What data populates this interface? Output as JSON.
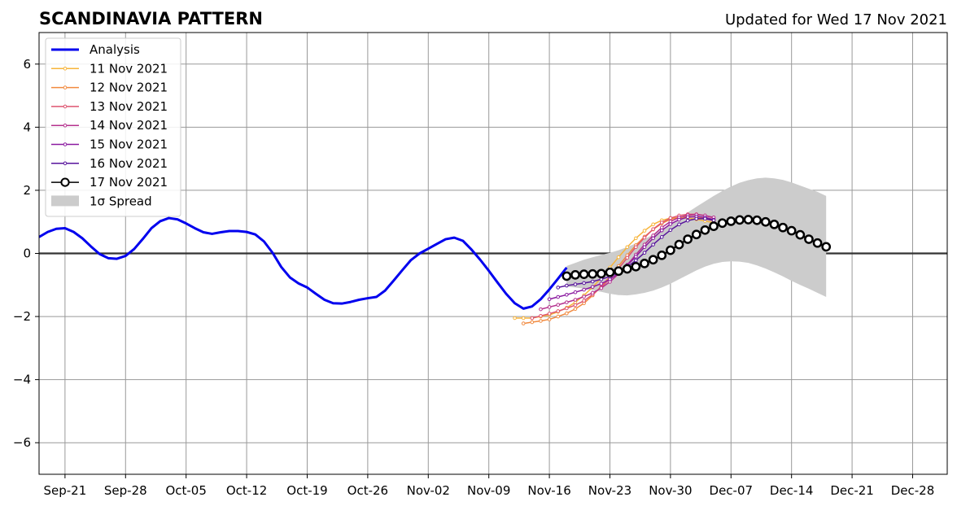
{
  "chart_data": {
    "type": "line",
    "title": "SCANDINAVIA PATTERN",
    "subtitle": "Updated for Wed 17 Nov 2021",
    "xlabel": "",
    "ylabel": "",
    "x_ticks": [
      "Sep-21",
      "Sep-28",
      "Oct-05",
      "Oct-12",
      "Oct-19",
      "Oct-26",
      "Nov-02",
      "Nov-09",
      "Nov-16",
      "Nov-23",
      "Nov-30",
      "Dec-07",
      "Dec-14",
      "Dec-21",
      "Dec-28"
    ],
    "y_ticks": [
      "6",
      "4",
      "2",
      "0",
      "−2",
      "−4",
      "−6"
    ],
    "xlim": [
      "2021-09-18",
      "2022-01-01"
    ],
    "ylim": [
      -7,
      7
    ],
    "grid": true,
    "legend_position": "top-left",
    "analysis": {
      "name": "Analysis",
      "color": "#0000ee",
      "start_date": "2021-09-18",
      "values": [
        0.52,
        0.68,
        0.78,
        0.8,
        0.68,
        0.48,
        0.22,
        -0.02,
        -0.15,
        -0.17,
        -0.08,
        0.14,
        0.46,
        0.8,
        1.02,
        1.12,
        1.08,
        0.95,
        0.8,
        0.67,
        0.62,
        0.67,
        0.71,
        0.71,
        0.68,
        0.6,
        0.38,
        0.02,
        -0.43,
        -0.76,
        -0.95,
        -1.08,
        -1.28,
        -1.47,
        -1.58,
        -1.59,
        -1.54,
        -1.47,
        -1.42,
        -1.38,
        -1.18,
        -0.86,
        -0.53,
        -0.21,
        0.0,
        0.15,
        0.3,
        0.45,
        0.5,
        0.4,
        0.12,
        -0.2,
        -0.55,
        -0.92,
        -1.28,
        -1.58,
        -1.75,
        -1.68,
        -1.45,
        -1.14,
        -0.8,
        -0.45
      ]
    },
    "forecasts": [
      {
        "name": "11 Nov 2021",
        "color": "#f7b43a",
        "start_date": "2021-11-12",
        "values": [
          -2.05,
          -2.05,
          -2.05,
          -2.0,
          -1.95,
          -1.85,
          -1.72,
          -1.55,
          -1.33,
          -1.07,
          -0.78,
          -0.45,
          -0.12,
          0.2,
          0.48,
          0.72,
          0.92,
          1.05,
          1.12,
          1.13,
          1.12,
          1.08,
          1.03,
          0.97
        ]
      },
      {
        "name": "12 Nov 2021",
        "color": "#f18a3f",
        "start_date": "2021-11-13",
        "values": [
          -2.22,
          -2.18,
          -2.14,
          -2.09,
          -2.0,
          -1.9,
          -1.76,
          -1.58,
          -1.33,
          -1.04,
          -0.73,
          -0.4,
          -0.06,
          0.26,
          0.53,
          0.76,
          0.95,
          1.08,
          1.15,
          1.17,
          1.15,
          1.1,
          1.03
        ]
      },
      {
        "name": "13 Nov 2021",
        "color": "#de5470",
        "start_date": "2021-11-14",
        "values": [
          -2.05,
          -1.98,
          -1.91,
          -1.83,
          -1.74,
          -1.64,
          -1.5,
          -1.3,
          -1.07,
          -0.8,
          -0.48,
          -0.14,
          0.2,
          0.5,
          0.77,
          0.98,
          1.12,
          1.2,
          1.24,
          1.24,
          1.2,
          1.12
        ]
      },
      {
        "name": "14 Nov 2021",
        "color": "#b5318e",
        "start_date": "2021-11-15",
        "values": [
          -1.77,
          -1.7,
          -1.63,
          -1.55,
          -1.47,
          -1.37,
          -1.25,
          -1.1,
          -0.9,
          -0.65,
          -0.36,
          -0.04,
          0.28,
          0.57,
          0.82,
          1.01,
          1.14,
          1.21,
          1.23,
          1.2,
          1.14
        ]
      },
      {
        "name": "15 Nov 2021",
        "color": "#8b1aa0",
        "start_date": "2021-11-16",
        "values": [
          -1.45,
          -1.38,
          -1.31,
          -1.23,
          -1.15,
          -1.06,
          -0.96,
          -0.82,
          -0.62,
          -0.38,
          -0.1,
          0.2,
          0.48,
          0.73,
          0.93,
          1.07,
          1.15,
          1.17,
          1.14,
          1.07
        ]
      },
      {
        "name": "16 Nov 2021",
        "color": "#57139c",
        "start_date": "2021-11-17",
        "values": [
          -1.08,
          -1.02,
          -0.98,
          -0.94,
          -0.89,
          -0.82,
          -0.73,
          -0.6,
          -0.43,
          -0.22,
          0.02,
          0.28,
          0.52,
          0.74,
          0.92,
          1.04,
          1.1,
          1.1,
          1.05
        ]
      }
    ],
    "current_forecast": {
      "name": "17 Nov 2021",
      "color": "#000000",
      "start_date": "2021-11-18",
      "values": [
        -0.72,
        -0.68,
        -0.66,
        -0.65,
        -0.64,
        -0.6,
        -0.56,
        -0.49,
        -0.42,
        -0.32,
        -0.2,
        -0.06,
        0.1,
        0.28,
        0.45,
        0.6,
        0.74,
        0.86,
        0.96,
        1.02,
        1.06,
        1.07,
        1.05,
        1.0,
        0.92,
        0.82,
        0.72,
        0.59,
        0.45,
        0.33,
        0.21
      ]
    },
    "spread": {
      "name": "1σ Spread",
      "color": "#cccccc",
      "start_date": "2021-11-18",
      "upper": [
        -0.4,
        -0.3,
        -0.2,
        -0.12,
        -0.05,
        0.02,
        0.1,
        0.2,
        0.32,
        0.45,
        0.6,
        0.76,
        0.92,
        1.1,
        1.3,
        1.48,
        1.65,
        1.82,
        1.98,
        2.12,
        2.24,
        2.32,
        2.38,
        2.4,
        2.38,
        2.33,
        2.25,
        2.15,
        2.05,
        1.95,
        1.82
      ],
      "lower": [
        -1.05,
        -1.08,
        -1.12,
        -1.17,
        -1.22,
        -1.28,
        -1.32,
        -1.33,
        -1.3,
        -1.25,
        -1.18,
        -1.08,
        -0.96,
        -0.82,
        -0.68,
        -0.54,
        -0.42,
        -0.33,
        -0.27,
        -0.25,
        -0.26,
        -0.3,
        -0.38,
        -0.48,
        -0.6,
        -0.73,
        -0.87,
        -1.0,
        -1.12,
        -1.25,
        -1.38
      ]
    }
  }
}
